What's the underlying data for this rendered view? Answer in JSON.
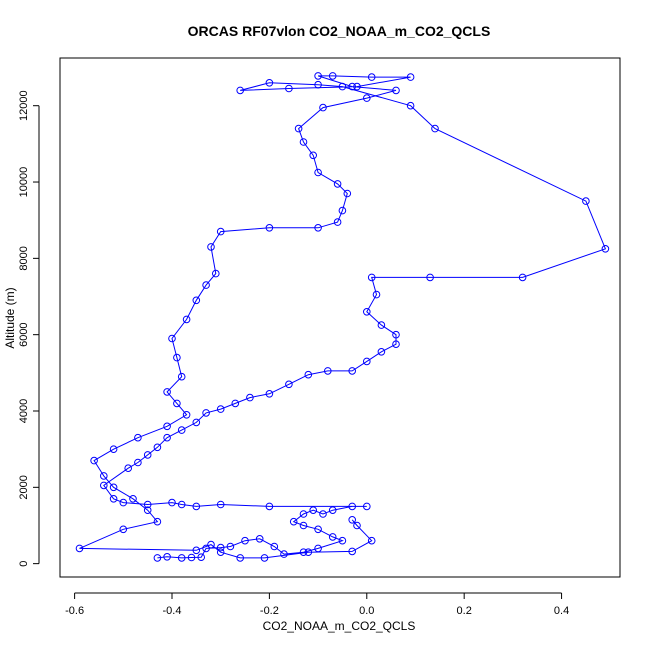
{
  "chart_data": {
    "type": "line",
    "title": "ORCAS RF07vlon CO2_NOAA_m_CO2_QCLS",
    "xlabel": "CO2_NOAA_m_CO2_QCLS",
    "ylabel": "Altitude (m)",
    "xlim": [
      -0.63,
      0.52
    ],
    "ylim": [
      -350,
      13250
    ],
    "xticks": [
      -0.6,
      -0.4,
      -0.2,
      0.0,
      0.2,
      0.4
    ],
    "xtick_labels": [
      "-0.6",
      "-0.4",
      "-0.2",
      "0.0",
      "0.2",
      "0.4"
    ],
    "yticks": [
      0,
      2000,
      4000,
      6000,
      8000,
      10000,
      12000
    ],
    "ytick_labels": [
      "0",
      "2000",
      "4000",
      "6000",
      "8000",
      "10000",
      "12000"
    ],
    "grid": false,
    "series": [
      {
        "color": "#0000ff",
        "marker": "open-circle",
        "points": [
          [
            -0.43,
            150
          ],
          [
            -0.41,
            180
          ],
          [
            -0.38,
            150
          ],
          [
            -0.36,
            160
          ],
          [
            -0.34,
            170
          ],
          [
            -0.33,
            400
          ],
          [
            -0.3,
            420
          ],
          [
            -0.28,
            450
          ],
          [
            -0.25,
            600
          ],
          [
            -0.22,
            650
          ],
          [
            -0.19,
            450
          ],
          [
            -0.17,
            250
          ],
          [
            -0.13,
            300
          ],
          [
            -0.1,
            400
          ],
          [
            -0.05,
            600
          ],
          [
            -0.07,
            700
          ],
          [
            -0.1,
            900
          ],
          [
            -0.13,
            1000
          ],
          [
            -0.15,
            1100
          ],
          [
            -0.13,
            1300
          ],
          [
            -0.11,
            1400
          ],
          [
            -0.09,
            1300
          ],
          [
            -0.07,
            1400
          ],
          [
            -0.03,
            1500
          ],
          [
            0.0,
            1500
          ],
          [
            -0.2,
            1500
          ],
          [
            -0.3,
            1550
          ],
          [
            -0.35,
            1500
          ],
          [
            -0.38,
            1550
          ],
          [
            -0.4,
            1600
          ],
          [
            -0.45,
            1550
          ],
          [
            -0.5,
            1600
          ],
          [
            -0.52,
            1700
          ],
          [
            -0.54,
            2050
          ],
          [
            -0.49,
            2500
          ],
          [
            -0.47,
            2650
          ],
          [
            -0.45,
            2850
          ],
          [
            -0.43,
            3050
          ],
          [
            -0.41,
            3300
          ],
          [
            -0.38,
            3500
          ],
          [
            -0.35,
            3700
          ],
          [
            -0.33,
            3950
          ],
          [
            -0.3,
            4050
          ],
          [
            -0.27,
            4200
          ],
          [
            -0.24,
            4350
          ],
          [
            -0.2,
            4450
          ],
          [
            -0.16,
            4700
          ],
          [
            -0.12,
            4950
          ],
          [
            -0.08,
            5050
          ],
          [
            -0.03,
            5050
          ],
          [
            0.0,
            5300
          ],
          [
            0.03,
            5550
          ],
          [
            0.06,
            5750
          ],
          [
            0.06,
            6000
          ],
          [
            0.03,
            6250
          ],
          [
            0.0,
            6600
          ],
          [
            0.02,
            7050
          ],
          [
            0.01,
            7500
          ],
          [
            0.13,
            7500
          ],
          [
            0.32,
            7500
          ],
          [
            0.49,
            8250
          ],
          [
            0.45,
            9500
          ],
          [
            0.14,
            11400
          ],
          [
            0.09,
            12000
          ],
          [
            -0.05,
            12500
          ],
          [
            -0.1,
            12550
          ],
          [
            -0.2,
            12600
          ],
          [
            -0.26,
            12400
          ],
          [
            -0.16,
            12450
          ],
          [
            -0.02,
            12500
          ],
          [
            0.09,
            12750
          ],
          [
            0.01,
            12750
          ],
          [
            -0.07,
            12780
          ],
          [
            -0.1,
            12780
          ],
          [
            -0.03,
            12500
          ],
          [
            0.06,
            12400
          ],
          [
            0.0,
            12200
          ],
          [
            -0.09,
            11950
          ],
          [
            -0.14,
            11400
          ],
          [
            -0.13,
            11050
          ],
          [
            -0.11,
            10700
          ],
          [
            -0.1,
            10250
          ],
          [
            -0.06,
            9950
          ],
          [
            -0.04,
            9700
          ],
          [
            -0.05,
            9250
          ],
          [
            -0.06,
            8950
          ],
          [
            -0.1,
            8800
          ],
          [
            -0.2,
            8800
          ],
          [
            -0.3,
            8700
          ],
          [
            -0.32,
            8300
          ],
          [
            -0.31,
            7600
          ],
          [
            -0.33,
            7300
          ],
          [
            -0.35,
            6900
          ],
          [
            -0.37,
            6400
          ],
          [
            -0.4,
            5900
          ],
          [
            -0.39,
            5400
          ],
          [
            -0.38,
            4900
          ],
          [
            -0.41,
            4500
          ],
          [
            -0.39,
            4200
          ],
          [
            -0.37,
            3900
          ],
          [
            -0.41,
            3600
          ],
          [
            -0.47,
            3300
          ],
          [
            -0.52,
            3000
          ],
          [
            -0.56,
            2700
          ],
          [
            -0.54,
            2300
          ],
          [
            -0.52,
            2000
          ],
          [
            -0.48,
            1700
          ],
          [
            -0.45,
            1400
          ],
          [
            -0.43,
            1100
          ],
          [
            -0.5,
            900
          ],
          [
            -0.59,
            400
          ],
          [
            -0.35,
            350
          ],
          [
            -0.32,
            500
          ],
          [
            -0.3,
            300
          ],
          [
            -0.26,
            150
          ],
          [
            -0.21,
            150
          ],
          [
            -0.12,
            300
          ],
          [
            -0.03,
            320
          ],
          [
            0.01,
            600
          ],
          [
            -0.02,
            1000
          ],
          [
            -0.03,
            1150
          ]
        ]
      }
    ]
  }
}
